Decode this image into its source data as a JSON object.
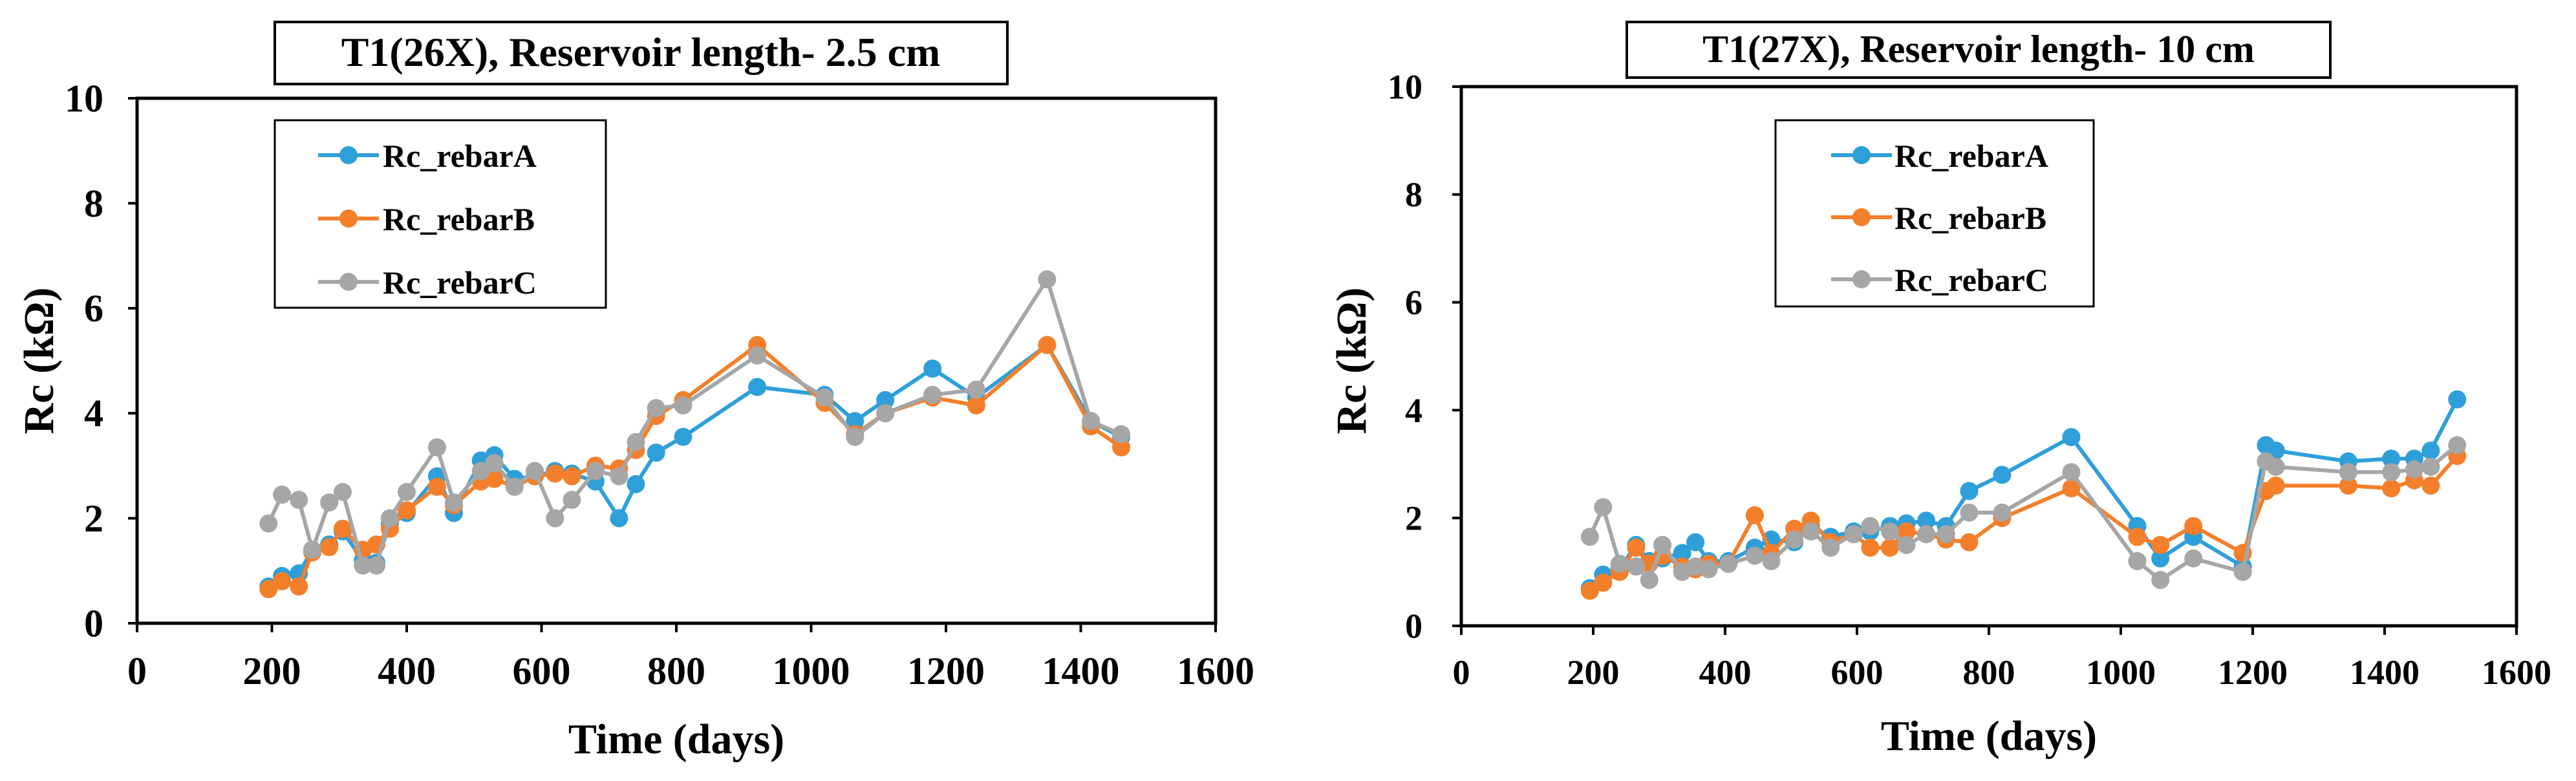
{
  "colors": {
    "rebarA": "#2E9FD9",
    "rebarB": "#F47F2A",
    "rebarC": "#A6A6A6",
    "axis": "#000000",
    "background": "#ffffff"
  },
  "chart_data": [
    {
      "type": "line",
      "title": "T1(26X), Reservoir length- 2.5 cm",
      "xlabel": "Time (days)",
      "ylabel": "Rc (kΩ)",
      "xlim": [
        0,
        1600
      ],
      "ylim": [
        0,
        10
      ],
      "xticks": [
        0,
        200,
        400,
        600,
        800,
        1000,
        1200,
        1400,
        1600
      ],
      "yticks": [
        0,
        2,
        4,
        6,
        8,
        10
      ],
      "grid": false,
      "legend_position": "top-left",
      "series": [
        {
          "name": "Rc_rebarA",
          "x": [
            195,
            215,
            240,
            260,
            285,
            305,
            335,
            355,
            375,
            400,
            445,
            470,
            510,
            530,
            560,
            590,
            620,
            645,
            680,
            715,
            740,
            770,
            810,
            920,
            1020,
            1065,
            1110,
            1180,
            1245,
            1350,
            1415,
            1460
          ],
          "y": [
            0.7,
            0.9,
            0.95,
            1.4,
            1.5,
            1.75,
            1.2,
            1.15,
            1.9,
            2.1,
            2.8,
            2.1,
            3.1,
            3.2,
            2.75,
            2.8,
            2.9,
            2.85,
            2.7,
            2.0,
            2.65,
            3.25,
            3.55,
            4.5,
            4.35,
            3.85,
            4.25,
            4.85,
            4.3,
            5.3,
            3.85,
            3.55
          ]
        },
        {
          "name": "Rc_rebarB",
          "x": [
            195,
            215,
            240,
            260,
            285,
            305,
            335,
            355,
            375,
            400,
            445,
            470,
            510,
            530,
            560,
            590,
            620,
            645,
            680,
            715,
            740,
            770,
            810,
            920,
            1020,
            1065,
            1110,
            1180,
            1245,
            1350,
            1415,
            1460
          ],
          "y": [
            0.65,
            0.8,
            0.7,
            1.35,
            1.45,
            1.8,
            1.4,
            1.5,
            1.8,
            2.15,
            2.6,
            2.25,
            2.7,
            2.75,
            2.6,
            2.8,
            2.85,
            2.8,
            3.0,
            2.95,
            3.3,
            3.95,
            4.25,
            5.3,
            4.2,
            3.6,
            4.0,
            4.3,
            4.15,
            5.3,
            3.75,
            3.35
          ]
        },
        {
          "name": "Rc_rebarC",
          "x": [
            195,
            215,
            240,
            260,
            285,
            305,
            335,
            355,
            375,
            400,
            445,
            470,
            510,
            530,
            560,
            590,
            620,
            645,
            680,
            715,
            740,
            770,
            810,
            920,
            1020,
            1065,
            1110,
            1180,
            1245,
            1350,
            1415,
            1460
          ],
          "y": [
            1.9,
            2.45,
            2.35,
            1.4,
            2.3,
            2.5,
            1.1,
            1.1,
            2.0,
            2.5,
            3.35,
            2.3,
            2.9,
            3.05,
            2.6,
            2.9,
            2.0,
            2.35,
            2.9,
            2.8,
            3.45,
            4.1,
            4.15,
            5.1,
            4.3,
            3.55,
            4.0,
            4.35,
            4.45,
            6.55,
            3.85,
            3.6
          ]
        }
      ]
    },
    {
      "type": "line",
      "title": "T1(27X), Reservoir length- 10 cm",
      "xlabel": "Time (days)",
      "ylabel": "Rc (kΩ)",
      "xlim": [
        0,
        1600
      ],
      "ylim": [
        0,
        10
      ],
      "xticks": [
        0,
        200,
        400,
        600,
        800,
        1000,
        1200,
        1400,
        1600
      ],
      "yticks": [
        0,
        2,
        4,
        6,
        8,
        10
      ],
      "grid": false,
      "legend_position": "top-center",
      "series": [
        {
          "name": "Rc_rebarA",
          "x": [
            195,
            215,
            240,
            265,
            285,
            305,
            335,
            355,
            375,
            405,
            445,
            470,
            505,
            530,
            560,
            595,
            620,
            650,
            675,
            705,
            735,
            770,
            820,
            925,
            1025,
            1060,
            1110,
            1185,
            1220,
            1235,
            1345,
            1410,
            1445,
            1470,
            1510
          ],
          "y": [
            0.7,
            0.95,
            1.05,
            1.5,
            1.2,
            1.25,
            1.35,
            1.55,
            1.2,
            1.2,
            1.45,
            1.6,
            1.55,
            1.85,
            1.65,
            1.75,
            1.75,
            1.85,
            1.9,
            1.95,
            1.85,
            2.5,
            2.8,
            3.5,
            1.85,
            1.25,
            1.65,
            1.1,
            3.35,
            3.25,
            3.05,
            3.1,
            3.1,
            3.25,
            4.2
          ]
        },
        {
          "name": "Rc_rebarB",
          "x": [
            195,
            215,
            240,
            265,
            285,
            305,
            335,
            355,
            375,
            405,
            445,
            470,
            505,
            530,
            560,
            595,
            620,
            650,
            675,
            705,
            735,
            770,
            820,
            925,
            1025,
            1060,
            1110,
            1185,
            1220,
            1235,
            1345,
            1410,
            1445,
            1470,
            1510
          ],
          "y": [
            0.65,
            0.8,
            1.0,
            1.45,
            1.15,
            1.3,
            1.1,
            1.05,
            1.15,
            1.15,
            2.05,
            1.35,
            1.8,
            1.95,
            1.55,
            1.7,
            1.45,
            1.45,
            1.75,
            1.7,
            1.6,
            1.55,
            2.0,
            2.55,
            1.65,
            1.5,
            1.85,
            1.35,
            2.5,
            2.6,
            2.6,
            2.55,
            2.7,
            2.6,
            3.15
          ]
        },
        {
          "name": "Rc_rebarC",
          "x": [
            195,
            215,
            240,
            265,
            285,
            305,
            335,
            355,
            375,
            405,
            445,
            470,
            505,
            530,
            560,
            595,
            620,
            650,
            675,
            705,
            735,
            770,
            820,
            925,
            1025,
            1060,
            1110,
            1185,
            1220,
            1235,
            1345,
            1410,
            1445,
            1470,
            1510
          ],
          "y": [
            1.65,
            2.2,
            1.15,
            1.1,
            0.85,
            1.5,
            1.0,
            1.1,
            1.05,
            1.15,
            1.3,
            1.2,
            1.6,
            1.75,
            1.45,
            1.7,
            1.85,
            1.75,
            1.5,
            1.7,
            1.7,
            2.1,
            2.1,
            2.85,
            1.2,
            0.85,
            1.25,
            1.0,
            3.05,
            2.95,
            2.85,
            2.85,
            2.9,
            2.95,
            3.35
          ]
        }
      ]
    }
  ]
}
